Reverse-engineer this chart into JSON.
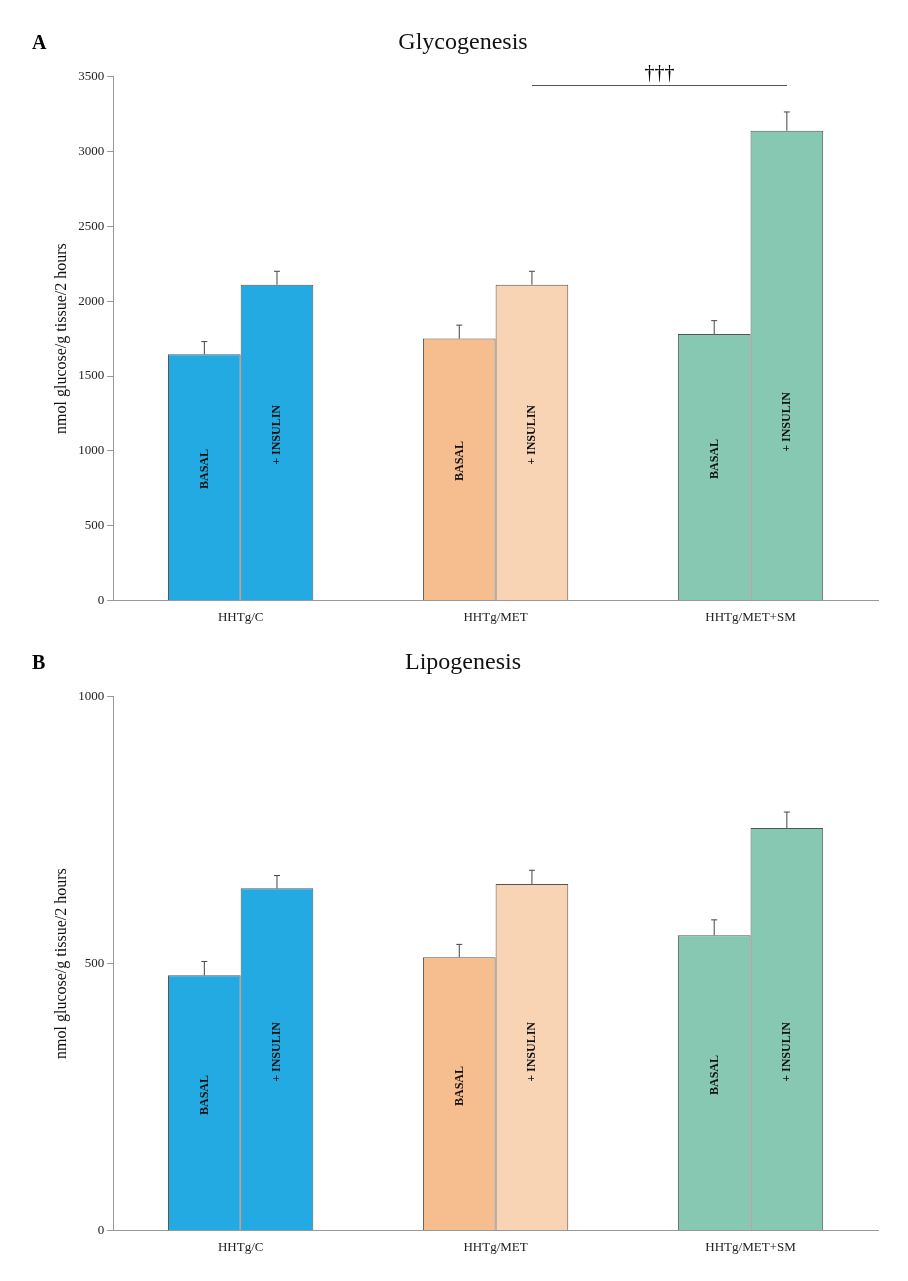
{
  "chart_data": [
    {
      "type": "bar",
      "title": "Glycogenesis",
      "ylabel": "nmol glucose/g tissue/2 hours",
      "categories": [
        "HHTg/C",
        "HHTg/MET",
        "HHTg/MET+SM"
      ],
      "series": [
        {
          "name": "BASAL",
          "colors": [
            "#23aae2",
            "#f6bd8e",
            "#86c8b1"
          ],
          "values": [
            1645,
            1750,
            1780
          ],
          "errors": [
            85,
            90,
            90
          ]
        },
        {
          "name": "+ INSULIN",
          "colors": [
            "#23aae2",
            "#f8d4b5",
            "#86c8b1"
          ],
          "values": [
            2110,
            2110,
            3140
          ],
          "errors": [
            90,
            90,
            125
          ]
        }
      ],
      "ylim": [
        0,
        3500
      ],
      "yticks": [
        0,
        500,
        1000,
        1500,
        2000,
        2500,
        3000,
        3500
      ],
      "grid": false,
      "legend": false,
      "annotations": [
        "A",
        "†††"
      ]
    },
    {
      "type": "bar",
      "title": "Lipogenesis",
      "ylabel": "nmol glucose/g tissue/2 hours",
      "categories": [
        "HHTg/C",
        "HHTg/MET",
        "HHTg/MET+SM"
      ],
      "series": [
        {
          "name": "BASAL",
          "colors": [
            "#23aae2",
            "#f6bd8e",
            "#86c8b1"
          ],
          "values": [
            478,
            512,
            553
          ],
          "errors": [
            26,
            24,
            29
          ]
        },
        {
          "name": "+ INSULIN",
          "colors": [
            "#23aae2",
            "#f8d4b5",
            "#86c8b1"
          ],
          "values": [
            641,
            649,
            754
          ],
          "errors": [
            24,
            26,
            30
          ]
        }
      ],
      "ylim": [
        0,
        1000
      ],
      "yticks": [
        0,
        500,
        1000
      ],
      "grid": false,
      "legend": false,
      "annotations": [
        "B"
      ]
    }
  ]
}
